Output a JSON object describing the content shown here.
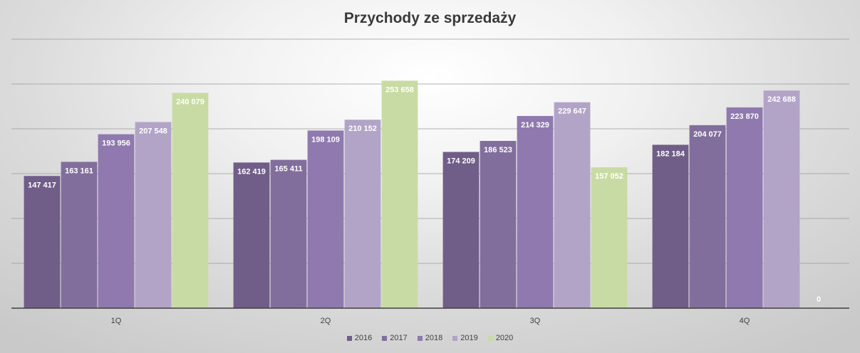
{
  "chart_data": {
    "type": "bar",
    "title": "Przychody ze sprzedaży",
    "xlabel": "",
    "ylabel": "",
    "ylim": [
      0,
      300000
    ],
    "grid": true,
    "legend_position": "bottom",
    "categories": [
      "1Q",
      "2Q",
      "3Q",
      "4Q"
    ],
    "series": [
      {
        "name": "2016",
        "color": "#705d88",
        "values": [
          147417,
          162419,
          174209,
          182184
        ],
        "labels": [
          "147 417",
          "162 419",
          "174 209",
          "182 184"
        ]
      },
      {
        "name": "2017",
        "color": "#826e9c",
        "values": [
          163161,
          165411,
          186523,
          204077
        ],
        "labels": [
          "163 161",
          "165 411",
          "186 523",
          "204 077"
        ]
      },
      {
        "name": "2018",
        "color": "#8f79ae",
        "values": [
          193956,
          198109,
          214329,
          223870
        ],
        "labels": [
          "193 956",
          "198 109",
          "214 329",
          "223 870"
        ]
      },
      {
        "name": "2019",
        "color": "#b2a4c7",
        "values": [
          207548,
          210152,
          229647,
          242688
        ],
        "labels": [
          "207 548",
          "210 152",
          "229 647",
          "242 688"
        ]
      },
      {
        "name": "2020",
        "color": "#c9dba4",
        "values": [
          240079,
          253658,
          157052,
          0
        ],
        "labels": [
          "240 079",
          "253 658",
          "157 052",
          "0"
        ]
      }
    ]
  }
}
